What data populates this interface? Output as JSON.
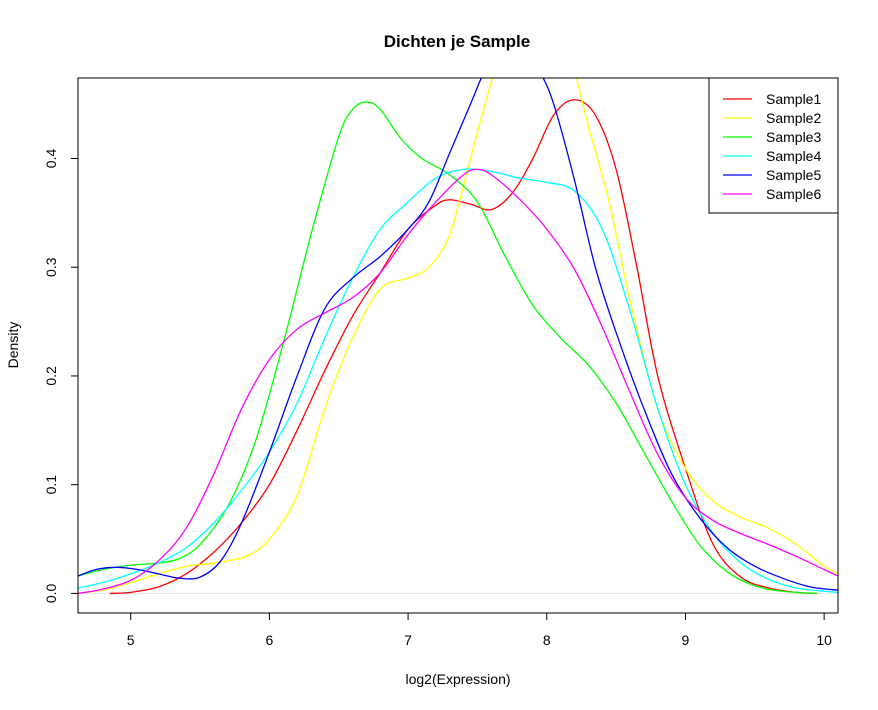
{
  "chart_data": {
    "type": "line",
    "title": "Dichten je Sample",
    "xlabel": "log2(Expression)",
    "ylabel": "Density",
    "xlim": [
      4.62,
      10.1
    ],
    "ylim": [
      -0.018,
      0.474
    ],
    "xticks": [
      5,
      6,
      7,
      8,
      9,
      10
    ],
    "yticks": [
      0.0,
      0.1,
      0.2,
      0.3,
      0.4
    ],
    "xtick_labels": [
      "5",
      "6",
      "7",
      "8",
      "9",
      "10"
    ],
    "ytick_labels": [
      "0.0",
      "0.1",
      "0.2",
      "0.3",
      "0.4"
    ],
    "grid": false,
    "legend_position": "top-right",
    "series": [
      {
        "name": "Sample1",
        "color": "#ff0000",
        "points": [
          [
            4.85,
            0.0
          ],
          [
            5.0,
            0.001
          ],
          [
            5.2,
            0.006
          ],
          [
            5.4,
            0.018
          ],
          [
            5.6,
            0.038
          ],
          [
            5.8,
            0.065
          ],
          [
            6.0,
            0.1
          ],
          [
            6.2,
            0.15
          ],
          [
            6.4,
            0.205
          ],
          [
            6.6,
            0.255
          ],
          [
            6.8,
            0.295
          ],
          [
            7.0,
            0.335
          ],
          [
            7.2,
            0.357
          ],
          [
            7.3,
            0.362
          ],
          [
            7.45,
            0.358
          ],
          [
            7.6,
            0.353
          ],
          [
            7.75,
            0.368
          ],
          [
            7.9,
            0.4
          ],
          [
            8.05,
            0.44
          ],
          [
            8.2,
            0.454
          ],
          [
            8.35,
            0.44
          ],
          [
            8.5,
            0.39
          ],
          [
            8.65,
            0.3
          ],
          [
            8.8,
            0.2
          ],
          [
            9.0,
            0.115
          ],
          [
            9.2,
            0.045
          ],
          [
            9.4,
            0.015
          ],
          [
            9.6,
            0.005
          ],
          [
            9.8,
            0.001
          ],
          [
            9.95,
            0.0
          ]
        ]
      },
      {
        "name": "Sample2",
        "color": "#ffff00",
        "points": [
          [
            4.62,
            0.0
          ],
          [
            4.8,
            0.003
          ],
          [
            5.0,
            0.01
          ],
          [
            5.2,
            0.018
          ],
          [
            5.4,
            0.025
          ],
          [
            5.55,
            0.027
          ],
          [
            5.7,
            0.03
          ],
          [
            5.85,
            0.035
          ],
          [
            6.0,
            0.05
          ],
          [
            6.2,
            0.09
          ],
          [
            6.4,
            0.17
          ],
          [
            6.6,
            0.235
          ],
          [
            6.8,
            0.28
          ],
          [
            7.0,
            0.29
          ],
          [
            7.15,
            0.3
          ],
          [
            7.3,
            0.33
          ],
          [
            7.45,
            0.4
          ],
          [
            7.6,
            0.47
          ],
          [
            7.7,
            0.5
          ],
          [
            7.8,
            0.52
          ],
          [
            7.9,
            0.53
          ],
          [
            8.0,
            0.525
          ],
          [
            8.1,
            0.51
          ],
          [
            8.2,
            0.48
          ],
          [
            8.3,
            0.43
          ],
          [
            8.45,
            0.36
          ],
          [
            8.6,
            0.27
          ],
          [
            8.8,
            0.17
          ],
          [
            9.0,
            0.115
          ],
          [
            9.2,
            0.085
          ],
          [
            9.4,
            0.07
          ],
          [
            9.6,
            0.06
          ],
          [
            9.8,
            0.045
          ],
          [
            10.0,
            0.025
          ],
          [
            10.1,
            0.018
          ]
        ]
      },
      {
        "name": "Sample3",
        "color": "#00ff00",
        "points": [
          [
            4.62,
            0.016
          ],
          [
            4.8,
            0.022
          ],
          [
            5.0,
            0.026
          ],
          [
            5.2,
            0.028
          ],
          [
            5.35,
            0.032
          ],
          [
            5.5,
            0.045
          ],
          [
            5.7,
            0.08
          ],
          [
            5.9,
            0.14
          ],
          [
            6.1,
            0.23
          ],
          [
            6.3,
            0.33
          ],
          [
            6.5,
            0.42
          ],
          [
            6.6,
            0.445
          ],
          [
            6.7,
            0.452
          ],
          [
            6.8,
            0.445
          ],
          [
            6.95,
            0.418
          ],
          [
            7.1,
            0.4
          ],
          [
            7.3,
            0.385
          ],
          [
            7.5,
            0.36
          ],
          [
            7.7,
            0.31
          ],
          [
            7.9,
            0.265
          ],
          [
            8.1,
            0.235
          ],
          [
            8.3,
            0.21
          ],
          [
            8.5,
            0.175
          ],
          [
            8.7,
            0.13
          ],
          [
            8.9,
            0.085
          ],
          [
            9.1,
            0.045
          ],
          [
            9.3,
            0.02
          ],
          [
            9.5,
            0.007
          ],
          [
            9.7,
            0.002
          ],
          [
            9.95,
            0.0
          ]
        ]
      },
      {
        "name": "Sample4",
        "color": "#00ffff",
        "points": [
          [
            4.62,
            0.005
          ],
          [
            4.8,
            0.01
          ],
          [
            5.0,
            0.018
          ],
          [
            5.2,
            0.028
          ],
          [
            5.4,
            0.042
          ],
          [
            5.6,
            0.065
          ],
          [
            5.8,
            0.095
          ],
          [
            6.0,
            0.13
          ],
          [
            6.2,
            0.175
          ],
          [
            6.4,
            0.235
          ],
          [
            6.6,
            0.29
          ],
          [
            6.8,
            0.335
          ],
          [
            7.0,
            0.36
          ],
          [
            7.2,
            0.382
          ],
          [
            7.4,
            0.39
          ],
          [
            7.6,
            0.388
          ],
          [
            7.8,
            0.382
          ],
          [
            8.0,
            0.378
          ],
          [
            8.2,
            0.37
          ],
          [
            8.4,
            0.335
          ],
          [
            8.6,
            0.26
          ],
          [
            8.8,
            0.17
          ],
          [
            9.0,
            0.1
          ],
          [
            9.2,
            0.055
          ],
          [
            9.4,
            0.028
          ],
          [
            9.6,
            0.013
          ],
          [
            9.8,
            0.005
          ],
          [
            10.0,
            0.002
          ],
          [
            10.1,
            0.001
          ]
        ]
      },
      {
        "name": "Sample5",
        "color": "#0000ff",
        "points": [
          [
            4.62,
            0.016
          ],
          [
            4.75,
            0.022
          ],
          [
            4.9,
            0.024
          ],
          [
            5.05,
            0.022
          ],
          [
            5.2,
            0.018
          ],
          [
            5.35,
            0.014
          ],
          [
            5.5,
            0.015
          ],
          [
            5.65,
            0.03
          ],
          [
            5.8,
            0.065
          ],
          [
            6.0,
            0.13
          ],
          [
            6.2,
            0.2
          ],
          [
            6.4,
            0.262
          ],
          [
            6.6,
            0.29
          ],
          [
            6.8,
            0.31
          ],
          [
            7.0,
            0.335
          ],
          [
            7.15,
            0.36
          ],
          [
            7.3,
            0.405
          ],
          [
            7.45,
            0.45
          ],
          [
            7.55,
            0.48
          ],
          [
            7.65,
            0.5
          ],
          [
            7.75,
            0.51
          ],
          [
            7.85,
            0.5
          ],
          [
            7.95,
            0.48
          ],
          [
            8.05,
            0.45
          ],
          [
            8.2,
            0.38
          ],
          [
            8.35,
            0.3
          ],
          [
            8.5,
            0.24
          ],
          [
            8.7,
            0.17
          ],
          [
            8.9,
            0.11
          ],
          [
            9.1,
            0.07
          ],
          [
            9.3,
            0.042
          ],
          [
            9.5,
            0.025
          ],
          [
            9.7,
            0.014
          ],
          [
            9.9,
            0.006
          ],
          [
            10.1,
            0.003
          ]
        ]
      },
      {
        "name": "Sample6",
        "color": "#ff00ff",
        "points": [
          [
            4.62,
            0.0
          ],
          [
            4.8,
            0.004
          ],
          [
            5.0,
            0.012
          ],
          [
            5.2,
            0.03
          ],
          [
            5.4,
            0.06
          ],
          [
            5.6,
            0.11
          ],
          [
            5.8,
            0.17
          ],
          [
            6.0,
            0.215
          ],
          [
            6.2,
            0.243
          ],
          [
            6.4,
            0.258
          ],
          [
            6.6,
            0.272
          ],
          [
            6.8,
            0.295
          ],
          [
            7.0,
            0.33
          ],
          [
            7.2,
            0.36
          ],
          [
            7.4,
            0.385
          ],
          [
            7.5,
            0.39
          ],
          [
            7.6,
            0.385
          ],
          [
            7.8,
            0.363
          ],
          [
            8.0,
            0.335
          ],
          [
            8.2,
            0.298
          ],
          [
            8.4,
            0.245
          ],
          [
            8.6,
            0.185
          ],
          [
            8.8,
            0.128
          ],
          [
            9.0,
            0.088
          ],
          [
            9.2,
            0.067
          ],
          [
            9.4,
            0.055
          ],
          [
            9.6,
            0.045
          ],
          [
            9.8,
            0.034
          ],
          [
            10.0,
            0.022
          ],
          [
            10.1,
            0.016
          ]
        ]
      }
    ]
  }
}
